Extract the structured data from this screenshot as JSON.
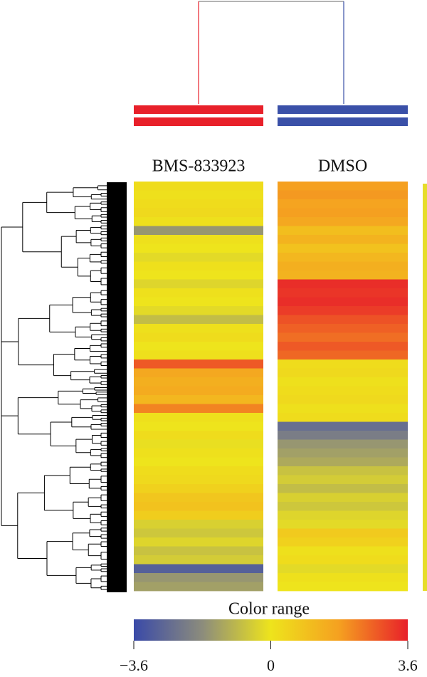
{
  "chart_data": {
    "type": "heatmap",
    "series": [
      {
        "name": "BMS-833923",
        "color": "#e8202a",
        "values": [
          0.2,
          0.1,
          0.2,
          0.3,
          0.1,
          -1.6,
          0.1,
          0,
          -0.2,
          0.1,
          0,
          -0.3,
          0.1,
          0,
          -0.2,
          -0.8,
          0.1,
          0.2,
          0,
          0.1,
          2.8,
          1.6,
          1.4,
          1.5,
          1.2,
          2.2,
          0.1,
          0,
          0.2,
          -0.1,
          0.1,
          0,
          0.2,
          0.3,
          0.5,
          0.8,
          0.9,
          0.6,
          -0.4,
          -0.6,
          -0.3,
          -0.7,
          -0.5,
          -3,
          -1.6,
          -1.4
        ]
      },
      {
        "name": "DMSO",
        "color": "#3a50a8",
        "values": [
          1.8,
          1.9,
          1.7,
          1.8,
          1.6,
          1.0,
          1.3,
          0.9,
          1.2,
          1.4,
          1.3,
          3.4,
          3.3,
          3.4,
          3.2,
          2.9,
          2.7,
          2.5,
          2.8,
          2.6,
          0.2,
          0.3,
          0.1,
          0.2,
          0.3,
          0.1,
          0.2,
          -2.6,
          -2.2,
          -1.6,
          -1.4,
          -1.2,
          -0.7,
          -0.5,
          -0.8,
          -0.4,
          -0.6,
          -0.3,
          -0.2,
          0.7,
          0.5,
          0.1,
          0.2,
          -0.2,
          0.1,
          0
        ]
      }
    ],
    "colorbar_title": "Color range",
    "colorscale": [
      "#3a4aa8",
      "#8c8c7c",
      "#eee41c",
      "#f5a020",
      "#e8202a"
    ],
    "zlim": [
      -3.6,
      3.6
    ],
    "zticks": [
      {
        "value": -3.6,
        "label": "−3.6"
      },
      0,
      3.6
    ]
  }
}
